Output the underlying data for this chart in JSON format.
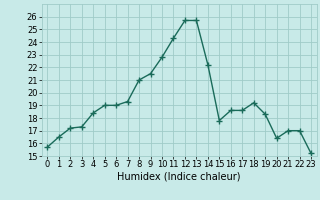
{
  "x": [
    0,
    1,
    2,
    3,
    4,
    5,
    6,
    7,
    8,
    9,
    10,
    11,
    12,
    13,
    14,
    15,
    16,
    17,
    18,
    19,
    20,
    21,
    22,
    23
  ],
  "y": [
    15.7,
    16.5,
    17.2,
    17.3,
    18.4,
    19.0,
    19.0,
    19.3,
    21.0,
    21.5,
    22.8,
    24.3,
    25.7,
    25.7,
    22.2,
    17.8,
    18.6,
    18.6,
    19.2,
    18.3,
    16.4,
    17.0,
    17.0,
    15.2
  ],
  "line_color": "#1a6b5a",
  "marker": "+",
  "markersize": 4,
  "linewidth": 1.0,
  "background_color": "#c8eae8",
  "grid_color": "#a0ccc8",
  "xlabel": "Humidex (Indice chaleur)",
  "xlabel_fontsize": 7,
  "tick_fontsize": 6,
  "xlim": [
    -0.5,
    23.5
  ],
  "ylim": [
    15,
    27
  ],
  "yticks": [
    15,
    16,
    17,
    18,
    19,
    20,
    21,
    22,
    23,
    24,
    25,
    26
  ],
  "xticks": [
    0,
    1,
    2,
    3,
    4,
    5,
    6,
    7,
    8,
    9,
    10,
    11,
    12,
    13,
    14,
    15,
    16,
    17,
    18,
    19,
    20,
    21,
    22,
    23
  ]
}
